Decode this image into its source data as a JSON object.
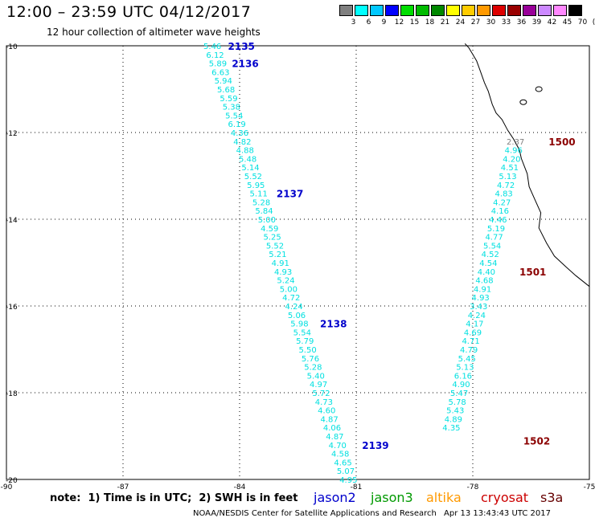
{
  "header": {
    "title": "12:00 – 23:59 UTC 04/12/2017",
    "subtitle": "12 hour collection of altimeter wave heights"
  },
  "color_scale": {
    "colors": [
      "#7f7f7f",
      "#00ffff",
      "#00c8ff",
      "#0000ff",
      "#00dd00",
      "#00bb00",
      "#008800",
      "#ffff00",
      "#ffcc00",
      "#ff9900",
      "#dd0000",
      "#990000",
      "#990099",
      "#cc88ff",
      "#ff88ff",
      "#000000"
    ],
    "labels": [
      "3",
      "6",
      "9",
      "12",
      "15",
      "18",
      "21",
      "24",
      "27",
      "30",
      "33",
      "36",
      "39",
      "42",
      "45",
      "70",
      "(ft)"
    ]
  },
  "chart_data": {
    "type": "scatter",
    "xlim": [
      -90,
      -75
    ],
    "ylim": [
      -20,
      -10
    ],
    "x_ticks": [
      "-90",
      "-87",
      "-84",
      "-81",
      "-78",
      "-75"
    ],
    "y_ticks": [
      "-10",
      "-12",
      "-14",
      "-16",
      "-18",
      "-20"
    ],
    "series": [
      {
        "name": "jason2",
        "color": "#00e0e0",
        "points": [
          {
            "x": -84.7,
            "y": -10.0,
            "v": "5.46"
          },
          {
            "x": -84.63,
            "y": -10.2,
            "v": "6.12"
          },
          {
            "x": -84.56,
            "y": -10.4,
            "v": "5.89"
          },
          {
            "x": -84.49,
            "y": -10.6,
            "v": "6.63"
          },
          {
            "x": -84.42,
            "y": -10.8,
            "v": "5.94"
          },
          {
            "x": -84.35,
            "y": -11.0,
            "v": "5.68"
          },
          {
            "x": -84.28,
            "y": -11.2,
            "v": "5.59"
          },
          {
            "x": -84.21,
            "y": -11.4,
            "v": "5.38"
          },
          {
            "x": -84.14,
            "y": -11.6,
            "v": "5.54"
          },
          {
            "x": -84.07,
            "y": -11.8,
            "v": "6.19"
          },
          {
            "x": -84.0,
            "y": -12.0,
            "v": "4.36"
          },
          {
            "x": -83.93,
            "y": -12.2,
            "v": "4.82"
          },
          {
            "x": -83.86,
            "y": -12.4,
            "v": "4.88"
          },
          {
            "x": -83.79,
            "y": -12.6,
            "v": "5.48"
          },
          {
            "x": -83.72,
            "y": -12.8,
            "v": "5.14"
          },
          {
            "x": -83.65,
            "y": -13.0,
            "v": "5.52"
          },
          {
            "x": -83.58,
            "y": -13.2,
            "v": "5.95"
          },
          {
            "x": -83.51,
            "y": -13.4,
            "v": "5.11"
          },
          {
            "x": -83.44,
            "y": -13.6,
            "v": "5.28"
          },
          {
            "x": -83.37,
            "y": -13.8,
            "v": "5.84"
          },
          {
            "x": -83.3,
            "y": -14.0,
            "v": "5.00"
          },
          {
            "x": -83.23,
            "y": -14.2,
            "v": "4.59"
          },
          {
            "x": -83.16,
            "y": -14.4,
            "v": "5.25"
          },
          {
            "x": -83.09,
            "y": -14.6,
            "v": "5.52"
          },
          {
            "x": -83.02,
            "y": -14.8,
            "v": "5.21"
          },
          {
            "x": -82.95,
            "y": -15.0,
            "v": "4.91"
          },
          {
            "x": -82.88,
            "y": -15.2,
            "v": "4.93"
          },
          {
            "x": -82.81,
            "y": -15.4,
            "v": "5.24"
          },
          {
            "x": -82.74,
            "y": -15.6,
            "v": "5.00"
          },
          {
            "x": -82.67,
            "y": -15.8,
            "v": "4.72"
          },
          {
            "x": -82.6,
            "y": -16.0,
            "v": "4.24"
          },
          {
            "x": -82.53,
            "y": -16.2,
            "v": "5.06"
          },
          {
            "x": -82.46,
            "y": -16.4,
            "v": "5.98"
          },
          {
            "x": -82.39,
            "y": -16.6,
            "v": "5.54"
          },
          {
            "x": -82.32,
            "y": -16.8,
            "v": "5.79"
          },
          {
            "x": -82.25,
            "y": -17.0,
            "v": "5.50"
          },
          {
            "x": -82.18,
            "y": -17.2,
            "v": "5.76"
          },
          {
            "x": -82.11,
            "y": -17.4,
            "v": "5.28"
          },
          {
            "x": -82.04,
            "y": -17.6,
            "v": "5.40"
          },
          {
            "x": -81.97,
            "y": -17.8,
            "v": "4.97"
          },
          {
            "x": -81.9,
            "y": -18.0,
            "v": "5.72"
          },
          {
            "x": -81.83,
            "y": -18.2,
            "v": "4.73"
          },
          {
            "x": -81.76,
            "y": -18.4,
            "v": "4.60"
          },
          {
            "x": -81.69,
            "y": -18.6,
            "v": "4.87"
          },
          {
            "x": -81.62,
            "y": -18.8,
            "v": "4.06"
          },
          {
            "x": -81.55,
            "y": -19.0,
            "v": "4.87"
          },
          {
            "x": -81.48,
            "y": -19.2,
            "v": "4.70"
          },
          {
            "x": -81.41,
            "y": -19.4,
            "v": "4.58"
          },
          {
            "x": -81.34,
            "y": -19.6,
            "v": "4.65"
          },
          {
            "x": -81.27,
            "y": -19.8,
            "v": "5.07"
          },
          {
            "x": -81.2,
            "y": -20.0,
            "v": "4.95"
          }
        ]
      },
      {
        "name": "cryosat",
        "color": "#00e0e0",
        "points": [
          {
            "x": -76.9,
            "y": -12.2,
            "v": "2.37",
            "color": "#7f7f7f"
          },
          {
            "x": -76.95,
            "y": -12.4,
            "v": "4.96"
          },
          {
            "x": -77.0,
            "y": -12.6,
            "v": "4.20"
          },
          {
            "x": -77.05,
            "y": -12.8,
            "v": "4.51"
          },
          {
            "x": -77.1,
            "y": -13.0,
            "v": "5.13"
          },
          {
            "x": -77.15,
            "y": -13.2,
            "v": "4.72"
          },
          {
            "x": -77.2,
            "y": -13.4,
            "v": "4.83"
          },
          {
            "x": -77.25,
            "y": -13.6,
            "v": "4.27"
          },
          {
            "x": -77.3,
            "y": -13.8,
            "v": "4.16"
          },
          {
            "x": -77.35,
            "y": -14.0,
            "v": "4.46"
          },
          {
            "x": -77.4,
            "y": -14.2,
            "v": "5.19"
          },
          {
            "x": -77.45,
            "y": -14.4,
            "v": "4.77"
          },
          {
            "x": -77.5,
            "y": -14.6,
            "v": "5.54"
          },
          {
            "x": -77.55,
            "y": -14.8,
            "v": "4.52"
          },
          {
            "x": -77.6,
            "y": -15.0,
            "v": "4.54"
          },
          {
            "x": -77.65,
            "y": -15.2,
            "v": "4.40"
          },
          {
            "x": -77.7,
            "y": -15.4,
            "v": "4.68"
          },
          {
            "x": -77.75,
            "y": -15.6,
            "v": "4.91"
          },
          {
            "x": -77.8,
            "y": -15.8,
            "v": "4.93"
          },
          {
            "x": -77.85,
            "y": -16.0,
            "v": "3.43"
          },
          {
            "x": -77.9,
            "y": -16.2,
            "v": "4.24"
          },
          {
            "x": -77.95,
            "y": -16.4,
            "v": "4.17"
          },
          {
            "x": -78.0,
            "y": -16.6,
            "v": "4.69"
          },
          {
            "x": -78.05,
            "y": -16.8,
            "v": "4.71"
          },
          {
            "x": -78.1,
            "y": -17.0,
            "v": "4.79"
          },
          {
            "x": -78.15,
            "y": -17.2,
            "v": "5.45"
          },
          {
            "x": -78.2,
            "y": -17.4,
            "v": "5.13"
          },
          {
            "x": -78.25,
            "y": -17.6,
            "v": "6.16"
          },
          {
            "x": -78.3,
            "y": -17.8,
            "v": "4.90"
          },
          {
            "x": -78.35,
            "y": -18.0,
            "v": "5.47"
          },
          {
            "x": -78.4,
            "y": -18.2,
            "v": "5.78"
          },
          {
            "x": -78.45,
            "y": -18.4,
            "v": "5.43"
          },
          {
            "x": -78.5,
            "y": -18.6,
            "v": "4.89"
          },
          {
            "x": -78.55,
            "y": -18.8,
            "v": "4.35"
          }
        ]
      }
    ],
    "time_labels": [
      {
        "text": "2135",
        "x": -84.3,
        "y": -10.0,
        "color": "#0000cc"
      },
      {
        "text": "2136",
        "x": -84.2,
        "y": -10.4,
        "color": "#0000cc"
      },
      {
        "text": "2137",
        "x": -83.05,
        "y": -13.4,
        "color": "#0000cc"
      },
      {
        "text": "2138",
        "x": -81.93,
        "y": -16.4,
        "color": "#0000cc"
      },
      {
        "text": "2139",
        "x": -80.85,
        "y": -19.2,
        "color": "#0000cc"
      },
      {
        "text": "1500",
        "x": -76.05,
        "y": -12.2,
        "color": "#8b0000"
      },
      {
        "text": "1501",
        "x": -76.8,
        "y": -15.2,
        "color": "#8b0000"
      },
      {
        "text": "1502",
        "x": -76.7,
        "y": -19.1,
        "color": "#8b0000"
      }
    ],
    "coastline": [
      [
        -75.0,
        -15.55
      ],
      [
        -75.35,
        -15.3
      ],
      [
        -75.6,
        -15.1
      ],
      [
        -75.9,
        -14.85
      ],
      [
        -76.1,
        -14.55
      ],
      [
        -76.3,
        -14.2
      ],
      [
        -76.25,
        -13.85
      ],
      [
        -76.4,
        -13.55
      ],
      [
        -76.55,
        -13.25
      ],
      [
        -76.6,
        -12.95
      ],
      [
        -76.75,
        -12.6
      ],
      [
        -76.8,
        -12.4
      ],
      [
        -76.95,
        -12.15
      ],
      [
        -77.1,
        -11.95
      ],
      [
        -77.25,
        -11.7
      ],
      [
        -77.4,
        -11.55
      ],
      [
        -77.5,
        -11.35
      ],
      [
        -77.6,
        -11.05
      ],
      [
        -77.7,
        -10.85
      ],
      [
        -77.8,
        -10.6
      ],
      [
        -77.9,
        -10.35
      ],
      [
        -78.0,
        -10.2
      ],
      [
        -78.1,
        -10.05
      ],
      [
        -78.2,
        -9.95
      ]
    ],
    "islands": [
      [
        -76.3,
        -11.0
      ],
      [
        -76.7,
        -11.3
      ]
    ]
  },
  "missions": [
    {
      "name": "jason2",
      "color": "#0000cc"
    },
    {
      "name": "jason3",
      "color": "#009900"
    },
    {
      "name": "altika",
      "color": "#ff9900"
    },
    {
      "name": "cryosat",
      "color": "#cc0000"
    },
    {
      "name": "s3a",
      "color": "#660000"
    }
  ],
  "note": "note:  1) Time is in UTC;  2) SWH is in feet",
  "footer": {
    "credit": "NOAA/NESDIS Center for Satellite Applications and Research",
    "timestamp": "Apr 13 13:43:43 UTC 2017"
  }
}
